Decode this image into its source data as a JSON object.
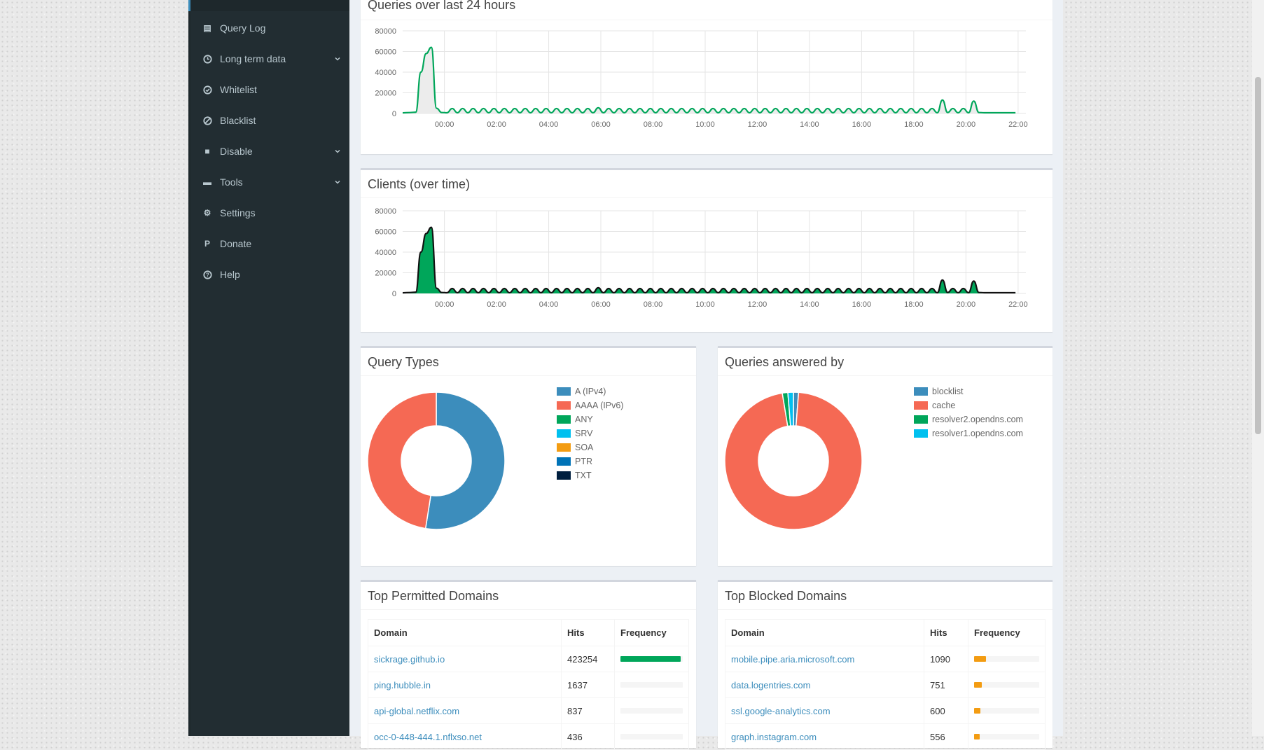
{
  "sidebar": {
    "items": [
      {
        "label": "Query Log",
        "icon": "file-icon"
      },
      {
        "label": "Long term data",
        "icon": "clock-icon",
        "chevron": true
      },
      {
        "label": "Whitelist",
        "icon": "check-circle-icon"
      },
      {
        "label": "Blacklist",
        "icon": "ban-icon"
      },
      {
        "label": "Disable",
        "icon": "stop-icon",
        "chevron": true
      },
      {
        "label": "Tools",
        "icon": "folder-icon",
        "chevron": true
      },
      {
        "label": "Settings",
        "icon": "gears-icon"
      },
      {
        "label": "Donate",
        "icon": "paypal-icon"
      },
      {
        "label": "Help",
        "icon": "question-circle-icon"
      }
    ]
  },
  "queries_chart": {
    "title": "Queries over last 24 hours"
  },
  "clients_chart": {
    "title": "Clients (over time)"
  },
  "query_types": {
    "title": "Query Types",
    "legend": [
      "A (IPv4)",
      "AAAA (IPv6)",
      "ANY",
      "SRV",
      "SOA",
      "PTR",
      "TXT"
    ],
    "colors": [
      "#3c8dbc",
      "#f56954",
      "#00a65a",
      "#00c0ef",
      "#f39c12",
      "#0073b7",
      "#001f3f"
    ]
  },
  "answered_by": {
    "title": "Queries answered by",
    "legend": [
      "blocklist",
      "cache",
      "resolver2.opendns.com",
      "resolver1.opendns.com"
    ],
    "colors": [
      "#3c8dbc",
      "#f56954",
      "#00a65a",
      "#00c0ef"
    ]
  },
  "top_permitted": {
    "title": "Top Permitted Domains",
    "headers": {
      "domain": "Domain",
      "hits": "Hits",
      "frequency": "Frequency"
    },
    "rows": [
      {
        "domain": "sickrage.github.io",
        "hits": "423254",
        "pct": 0.97,
        "color": "#00a65a"
      },
      {
        "domain": "ping.hubble.in",
        "hits": "1637",
        "pct": 0.0,
        "color": "#00a65a"
      },
      {
        "domain": "api-global.netflix.com",
        "hits": "837",
        "pct": 0.0,
        "color": "#00a65a"
      },
      {
        "domain": "occ-0-448-444.1.nflxso.net",
        "hits": "436",
        "pct": 0.0,
        "color": "#00a65a"
      }
    ]
  },
  "top_blocked": {
    "title": "Top Blocked Domains",
    "headers": {
      "domain": "Domain",
      "hits": "Hits",
      "frequency": "Frequency"
    },
    "rows": [
      {
        "domain": "mobile.pipe.aria.microsoft.com",
        "hits": "1090",
        "pct": 0.18,
        "color": "#f39c12"
      },
      {
        "domain": "data.logentries.com",
        "hits": "751",
        "pct": 0.12,
        "color": "#f39c12"
      },
      {
        "domain": "ssl.google-analytics.com",
        "hits": "600",
        "pct": 0.1,
        "color": "#f39c12"
      },
      {
        "domain": "graph.instagram.com",
        "hits": "556",
        "pct": 0.09,
        "color": "#f39c12"
      }
    ]
  },
  "chart_data": [
    {
      "type": "area",
      "title": "Queries over last 24 hours",
      "x_ticks": [
        "00:00",
        "02:00",
        "04:00",
        "06:00",
        "08:00",
        "10:00",
        "12:00",
        "14:00",
        "16:00",
        "18:00",
        "20:00",
        "22:00"
      ],
      "y_ticks": [
        "0",
        "20000",
        "40000",
        "60000",
        "80000"
      ],
      "ylim": [
        0,
        80000
      ],
      "x_hours": [
        -1.6,
        -1.3,
        -1.1,
        -0.9,
        -0.7,
        -0.5,
        -0.3,
        -0.1,
        0.1,
        0.3,
        0.5,
        0.7,
        0.9,
        1.1,
        1.3,
        1.5,
        1.7,
        1.9,
        2.1,
        2.3,
        2.5,
        2.7,
        2.9,
        3.1,
        3.3,
        3.5,
        3.7,
        3.9,
        4.1,
        4.3,
        4.5,
        4.7,
        4.9,
        5.1,
        5.3,
        5.5,
        5.7,
        5.9,
        6.1,
        6.3,
        6.5,
        6.7,
        6.9,
        7.1,
        7.3,
        7.5,
        7.7,
        7.9,
        8.1,
        8.3,
        8.5,
        8.7,
        8.9,
        9.1,
        9.3,
        9.5,
        9.7,
        9.9,
        10.1,
        10.3,
        10.5,
        10.7,
        10.9,
        11.1,
        11.3,
        11.5,
        11.7,
        11.9,
        12.1,
        12.3,
        12.5,
        12.7,
        12.9,
        13.1,
        13.3,
        13.5,
        13.7,
        13.9,
        14.1,
        14.3,
        14.5,
        14.7,
        14.9,
        15.1,
        15.3,
        15.5,
        15.7,
        15.9,
        16.1,
        16.3,
        16.5,
        16.7,
        16.9,
        17.1,
        17.3,
        17.5,
        17.7,
        17.9,
        18.1,
        18.3,
        18.5,
        18.7,
        18.9,
        19.1,
        19.3,
        19.5,
        19.7,
        19.9,
        20.1,
        20.3,
        20.5,
        20.7,
        20.9,
        21.1,
        21.3,
        21.5,
        21.7,
        21.9,
        22.1,
        22.3
      ],
      "series": [
        {
          "values": [
            600,
            900,
            1200,
            40000,
            58000,
            64000,
            5000,
            900,
            700,
            4800,
            700,
            4800,
            700,
            4800,
            700,
            4800,
            700,
            4800,
            700,
            4800,
            700,
            4800,
            700,
            4800,
            700,
            4800,
            700,
            4800,
            700,
            4800,
            700,
            4800,
            700,
            4800,
            700,
            4800,
            700,
            5500,
            700,
            4800,
            700,
            4800,
            700,
            4800,
            700,
            4800,
            700,
            4800,
            700,
            4800,
            700,
            4800,
            700,
            4800,
            700,
            4800,
            700,
            4800,
            700,
            4800,
            700,
            4800,
            700,
            4800,
            700,
            4800,
            700,
            4800,
            700,
            4800,
            700,
            4800,
            700,
            4800,
            700,
            4800,
            700,
            4800,
            700,
            4800,
            700,
            4800,
            700,
            4800,
            700,
            4800,
            700,
            4800,
            700,
            4800,
            700,
            4800,
            700,
            4800,
            700,
            4800,
            700,
            4800,
            700,
            4800,
            700,
            4800,
            700,
            13000,
            900,
            4800,
            700,
            4800,
            700,
            12000,
            900,
            700,
            700,
            700,
            700,
            700,
            700,
            700
          ]
        }
      ],
      "color": "#00a65a",
      "fill": "#ececec"
    },
    {
      "type": "area",
      "title": "Clients (over time)",
      "x_ticks": [
        "00:00",
        "02:00",
        "04:00",
        "06:00",
        "08:00",
        "10:00",
        "12:00",
        "14:00",
        "16:00",
        "18:00",
        "20:00",
        "22:00"
      ],
      "y_ticks": [
        "0",
        "20000",
        "40000",
        "60000",
        "80000"
      ],
      "ylim": [
        0,
        80000
      ],
      "x_hours": [
        -1.6,
        -1.3,
        -1.1,
        -0.9,
        -0.7,
        -0.5,
        -0.3,
        -0.1,
        0.1,
        0.3,
        0.5,
        0.7,
        0.9,
        1.1,
        1.3,
        1.5,
        1.7,
        1.9,
        2.1,
        2.3,
        2.5,
        2.7,
        2.9,
        3.1,
        3.3,
        3.5,
        3.7,
        3.9,
        4.1,
        4.3,
        4.5,
        4.7,
        4.9,
        5.1,
        5.3,
        5.5,
        5.7,
        5.9,
        6.1,
        6.3,
        6.5,
        6.7,
        6.9,
        7.1,
        7.3,
        7.5,
        7.7,
        7.9,
        8.1,
        8.3,
        8.5,
        8.7,
        8.9,
        9.1,
        9.3,
        9.5,
        9.7,
        9.9,
        10.1,
        10.3,
        10.5,
        10.7,
        10.9,
        11.1,
        11.3,
        11.5,
        11.7,
        11.9,
        12.1,
        12.3,
        12.5,
        12.7,
        12.9,
        13.1,
        13.3,
        13.5,
        13.7,
        13.9,
        14.1,
        14.3,
        14.5,
        14.7,
        14.9,
        15.1,
        15.3,
        15.5,
        15.7,
        15.9,
        16.1,
        16.3,
        16.5,
        16.7,
        16.9,
        17.1,
        17.3,
        17.5,
        17.7,
        17.9,
        18.1,
        18.3,
        18.5,
        18.7,
        18.9,
        19.1,
        19.3,
        19.5,
        19.7,
        19.9,
        20.1,
        20.3,
        20.5,
        20.7,
        20.9,
        21.1,
        21.3,
        21.5,
        21.7,
        21.9,
        22.1,
        22.3
      ],
      "series": [
        {
          "values": [
            600,
            900,
            1200,
            40000,
            58000,
            64000,
            5000,
            900,
            700,
            4800,
            700,
            4800,
            700,
            4800,
            700,
            4800,
            700,
            4800,
            700,
            4800,
            700,
            4800,
            700,
            4800,
            700,
            4800,
            700,
            4800,
            700,
            4800,
            700,
            4800,
            700,
            4800,
            700,
            4800,
            700,
            5500,
            700,
            4800,
            700,
            4800,
            700,
            4800,
            700,
            4800,
            700,
            4800,
            700,
            4800,
            700,
            4800,
            700,
            4800,
            700,
            4800,
            700,
            4800,
            700,
            4800,
            700,
            4800,
            700,
            4800,
            700,
            4800,
            700,
            4800,
            700,
            4800,
            700,
            4800,
            700,
            4800,
            700,
            4800,
            700,
            4800,
            700,
            4800,
            700,
            4800,
            700,
            4800,
            700,
            4800,
            700,
            4800,
            700,
            4800,
            700,
            4800,
            700,
            4800,
            700,
            4800,
            700,
            4800,
            700,
            4800,
            700,
            4800,
            700,
            13000,
            900,
            4800,
            700,
            4800,
            700,
            12000,
            900,
            700,
            700,
            700,
            700,
            700,
            700,
            700
          ]
        }
      ],
      "color": "#111111",
      "fill": "#00a65a"
    },
    {
      "type": "pie",
      "title": "Query Types",
      "labels": [
        "A (IPv4)",
        "AAAA (IPv6)",
        "ANY",
        "SRV",
        "SOA",
        "PTR",
        "TXT"
      ],
      "values": [
        52.5,
        47.5,
        0,
        0,
        0,
        0,
        0
      ]
    },
    {
      "type": "pie",
      "title": "Queries answered by",
      "labels": [
        "blocklist",
        "cache",
        "resolver2.opendns.com",
        "resolver1.opendns.com"
      ],
      "values": [
        1.2,
        96.2,
        1.3,
        1.3
      ]
    }
  ]
}
